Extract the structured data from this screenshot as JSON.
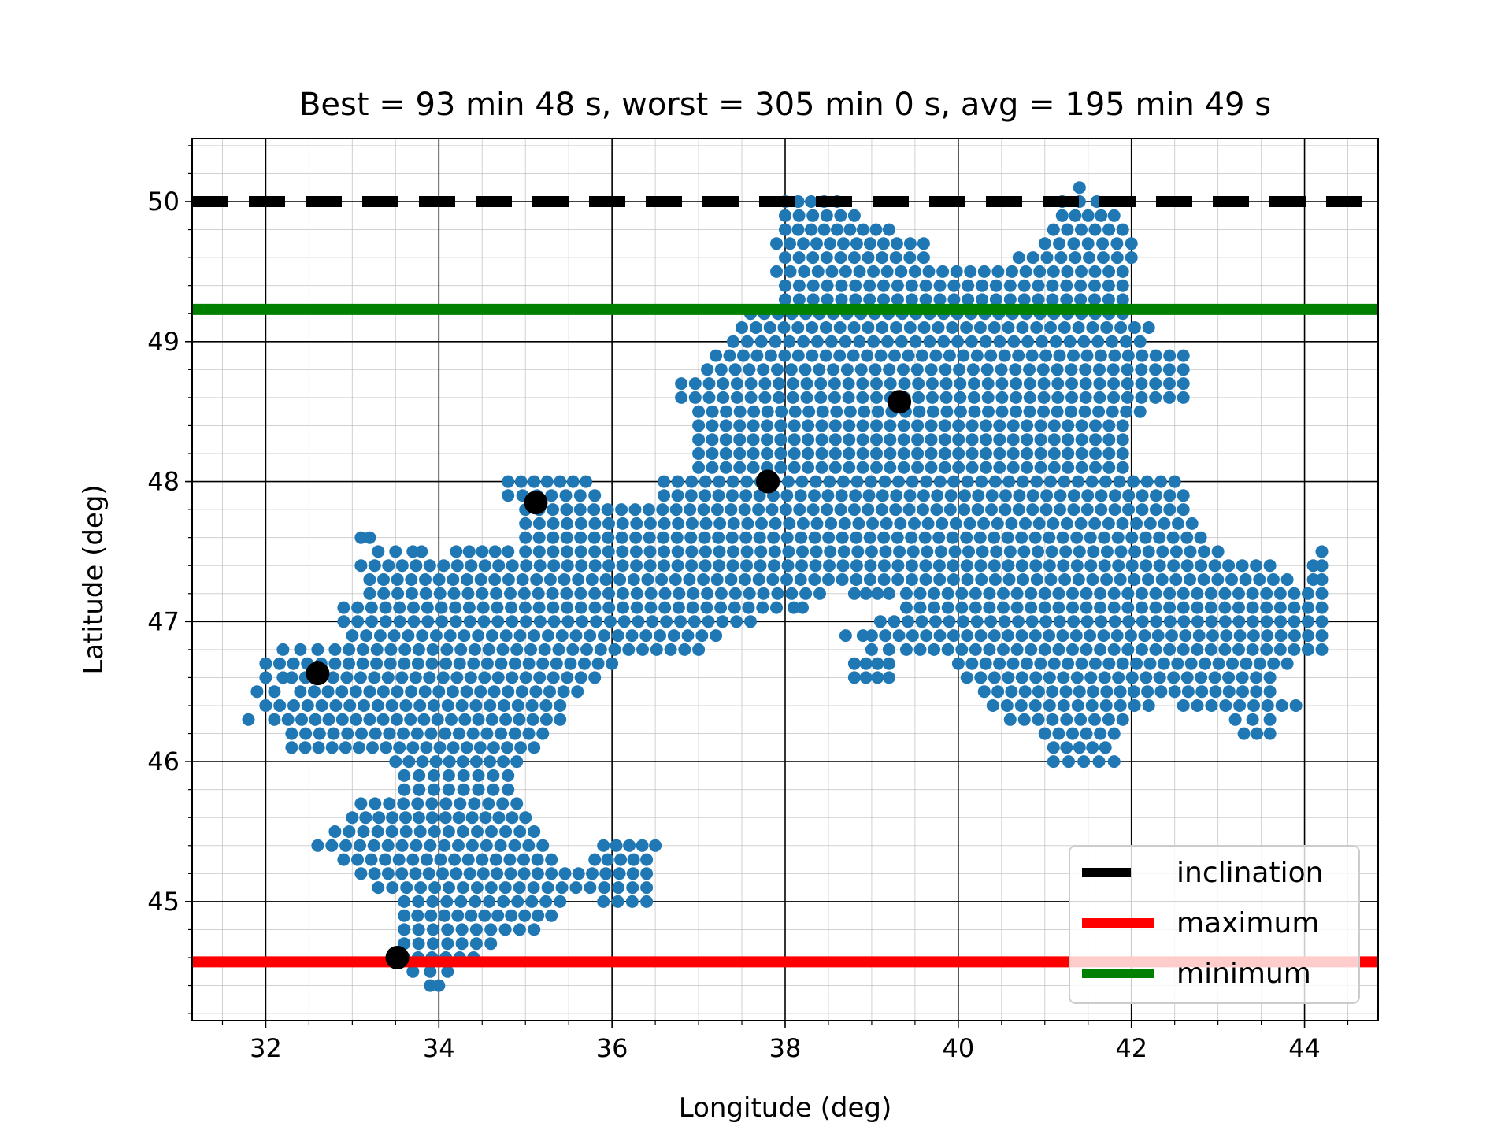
{
  "chart_data": {
    "type": "scatter",
    "title": "Best = 93 min 48 s, worst = 305 min 0 s, avg = 195 min 49 s",
    "xlabel": "Longitude (deg)",
    "ylabel": "Latitude (deg)",
    "xlim": [
      31.15,
      44.85
    ],
    "ylim": [
      44.15,
      50.45
    ],
    "x_ticks": [
      32,
      34,
      36,
      38,
      40,
      42,
      44
    ],
    "y_ticks": [
      45,
      46,
      47,
      48,
      49,
      50
    ],
    "grid": true,
    "minor_grid": true,
    "point_color": "#1f77b4",
    "grid_spacing": {
      "lon": 0.16,
      "lat": 0.1
    },
    "region_rows": [
      {
        "lat": 50.1,
        "spans": [
          [
            41.4,
            41.4
          ]
        ]
      },
      {
        "lat": 50.0,
        "spans": [
          [
            38.0,
            38.6
          ],
          [
            41.2,
            41.6
          ]
        ]
      },
      {
        "lat": 49.9,
        "spans": [
          [
            38.0,
            38.8
          ],
          [
            41.2,
            41.8
          ]
        ]
      },
      {
        "lat": 49.8,
        "spans": [
          [
            38.0,
            39.2
          ],
          [
            41.1,
            41.9
          ]
        ]
      },
      {
        "lat": 49.7,
        "spans": [
          [
            37.9,
            39.6
          ],
          [
            41.0,
            42.0
          ]
        ]
      },
      {
        "lat": 49.6,
        "spans": [
          [
            38.0,
            39.6
          ],
          [
            40.7,
            42.0
          ]
        ]
      },
      {
        "lat": 49.5,
        "spans": [
          [
            37.9,
            41.9
          ]
        ]
      },
      {
        "lat": 49.4,
        "spans": [
          [
            38.0,
            41.9
          ]
        ]
      },
      {
        "lat": 49.3,
        "spans": [
          [
            38.0,
            41.9
          ]
        ]
      },
      {
        "lat": 49.2,
        "spans": [
          [
            37.6,
            41.9
          ]
        ]
      },
      {
        "lat": 49.1,
        "spans": [
          [
            37.5,
            42.2
          ]
        ]
      },
      {
        "lat": 49.0,
        "spans": [
          [
            37.4,
            42.1
          ]
        ]
      },
      {
        "lat": 48.9,
        "spans": [
          [
            37.2,
            42.6
          ]
        ]
      },
      {
        "lat": 48.8,
        "spans": [
          [
            37.1,
            42.6
          ]
        ]
      },
      {
        "lat": 48.7,
        "spans": [
          [
            36.8,
            42.6
          ]
        ]
      },
      {
        "lat": 48.6,
        "spans": [
          [
            36.8,
            42.6
          ]
        ]
      },
      {
        "lat": 48.5,
        "spans": [
          [
            37.0,
            42.1
          ]
        ]
      },
      {
        "lat": 48.4,
        "spans": [
          [
            37.0,
            41.9
          ]
        ]
      },
      {
        "lat": 48.3,
        "spans": [
          [
            37.0,
            41.9
          ]
        ]
      },
      {
        "lat": 48.2,
        "spans": [
          [
            37.0,
            41.9
          ]
        ]
      },
      {
        "lat": 48.1,
        "spans": [
          [
            37.0,
            41.9
          ]
        ]
      },
      {
        "lat": 48.0,
        "spans": [
          [
            34.8,
            35.7
          ],
          [
            36.6,
            42.5
          ]
        ]
      },
      {
        "lat": 47.9,
        "spans": [
          [
            34.8,
            35.8
          ],
          [
            36.6,
            42.6
          ]
        ]
      },
      {
        "lat": 47.8,
        "spans": [
          [
            35.0,
            42.6
          ]
        ]
      },
      {
        "lat": 47.7,
        "spans": [
          [
            35.0,
            42.7
          ]
        ]
      },
      {
        "lat": 47.6,
        "spans": [
          [
            33.1,
            33.2
          ],
          [
            35.0,
            42.8
          ]
        ]
      },
      {
        "lat": 47.5,
        "spans": [
          [
            33.3,
            33.5
          ],
          [
            33.7,
            33.8
          ],
          [
            34.2,
            34.8
          ],
          [
            35.0,
            43.0
          ],
          [
            44.2,
            44.2
          ]
        ]
      },
      {
        "lat": 47.4,
        "spans": [
          [
            33.1,
            43.6
          ],
          [
            44.1,
            44.2
          ]
        ]
      },
      {
        "lat": 47.3,
        "spans": [
          [
            33.2,
            43.8
          ],
          [
            44.1,
            44.2
          ]
        ]
      },
      {
        "lat": 47.2,
        "spans": [
          [
            33.2,
            38.4
          ],
          [
            38.8,
            39.2
          ],
          [
            39.4,
            44.2
          ]
        ]
      },
      {
        "lat": 47.1,
        "spans": [
          [
            32.9,
            37.9
          ],
          [
            38.1,
            38.2
          ],
          [
            39.4,
            44.2
          ]
        ]
      },
      {
        "lat": 47.0,
        "spans": [
          [
            32.9,
            37.6
          ],
          [
            39.1,
            44.2
          ]
        ]
      },
      {
        "lat": 46.9,
        "spans": [
          [
            33.0,
            37.2
          ],
          [
            38.7,
            38.9
          ],
          [
            39.0,
            44.2
          ]
        ]
      },
      {
        "lat": 46.8,
        "spans": [
          [
            32.2,
            32.6
          ],
          [
            32.8,
            37.0
          ],
          [
            39.0,
            39.2
          ],
          [
            39.4,
            44.2
          ]
        ]
      },
      {
        "lat": 46.7,
        "spans": [
          [
            32.0,
            36.0
          ],
          [
            38.8,
            39.2
          ],
          [
            40.0,
            43.8
          ]
        ]
      },
      {
        "lat": 46.6,
        "spans": [
          [
            32.0,
            32.2
          ],
          [
            32.3,
            35.8
          ],
          [
            38.8,
            39.2
          ],
          [
            40.1,
            43.6
          ]
        ]
      },
      {
        "lat": 46.5,
        "spans": [
          [
            31.9,
            32.1
          ],
          [
            32.4,
            35.6
          ],
          [
            40.3,
            43.6
          ]
        ]
      },
      {
        "lat": 46.4,
        "spans": [
          [
            32.0,
            35.4
          ],
          [
            40.4,
            42.2
          ],
          [
            42.6,
            43.9
          ]
        ]
      },
      {
        "lat": 46.3,
        "spans": [
          [
            31.8,
            31.8
          ],
          [
            32.1,
            35.4
          ],
          [
            40.6,
            41.9
          ],
          [
            43.2,
            43.6
          ]
        ]
      },
      {
        "lat": 46.2,
        "spans": [
          [
            32.3,
            35.2
          ],
          [
            41.0,
            41.8
          ],
          [
            43.3,
            43.6
          ]
        ]
      },
      {
        "lat": 46.1,
        "spans": [
          [
            32.3,
            35.1
          ],
          [
            41.1,
            41.7
          ]
        ]
      },
      {
        "lat": 46.0,
        "spans": [
          [
            33.5,
            34.9
          ],
          [
            41.1,
            41.8
          ]
        ]
      },
      {
        "lat": 45.9,
        "spans": [
          [
            33.6,
            34.8
          ]
        ]
      },
      {
        "lat": 45.8,
        "spans": [
          [
            33.6,
            34.8
          ]
        ]
      },
      {
        "lat": 45.7,
        "spans": [
          [
            33.1,
            34.9
          ]
        ]
      },
      {
        "lat": 45.6,
        "spans": [
          [
            33.0,
            35.0
          ]
        ]
      },
      {
        "lat": 45.5,
        "spans": [
          [
            32.8,
            35.1
          ]
        ]
      },
      {
        "lat": 45.4,
        "spans": [
          [
            32.6,
            35.2
          ],
          [
            35.9,
            36.5
          ]
        ]
      },
      {
        "lat": 45.3,
        "spans": [
          [
            32.9,
            35.3
          ],
          [
            35.8,
            36.4
          ]
        ]
      },
      {
        "lat": 45.2,
        "spans": [
          [
            33.1,
            36.4
          ]
        ]
      },
      {
        "lat": 45.1,
        "spans": [
          [
            33.3,
            36.4
          ]
        ]
      },
      {
        "lat": 45.0,
        "spans": [
          [
            33.6,
            35.4
          ],
          [
            35.9,
            36.4
          ]
        ]
      },
      {
        "lat": 44.9,
        "spans": [
          [
            33.6,
            35.3
          ]
        ]
      },
      {
        "lat": 44.8,
        "spans": [
          [
            33.6,
            35.1
          ]
        ]
      },
      {
        "lat": 44.7,
        "spans": [
          [
            33.6,
            34.6
          ]
        ]
      },
      {
        "lat": 44.6,
        "spans": [
          [
            33.6,
            34.4
          ]
        ]
      },
      {
        "lat": 44.5,
        "spans": [
          [
            33.7,
            34.1
          ]
        ]
      },
      {
        "lat": 44.4,
        "spans": [
          [
            33.9,
            34.0
          ]
        ]
      }
    ],
    "stations": [
      {
        "lon": 32.6,
        "lat": 46.63
      },
      {
        "lon": 35.12,
        "lat": 47.85
      },
      {
        "lon": 37.8,
        "lat": 48.0
      },
      {
        "lon": 39.32,
        "lat": 48.57
      },
      {
        "lon": 33.52,
        "lat": 44.6
      }
    ],
    "station_color": "#000000",
    "lines": [
      {
        "name": "inclination",
        "lat": 50.0,
        "color": "#000000",
        "style": "dashed"
      },
      {
        "name": "maximum",
        "lat": 44.57,
        "color": "#ff0000",
        "style": "solid"
      },
      {
        "name": "minimum",
        "lat": 49.23,
        "color": "#008000",
        "style": "solid"
      }
    ],
    "legend": {
      "placement": "lower-right",
      "entries": [
        {
          "name": "inclination",
          "color": "#000000",
          "style": "dashed"
        },
        {
          "name": "maximum",
          "color": "#ff0000",
          "style": "solid"
        },
        {
          "name": "minimum",
          "color": "#008000",
          "style": "solid"
        }
      ]
    }
  }
}
